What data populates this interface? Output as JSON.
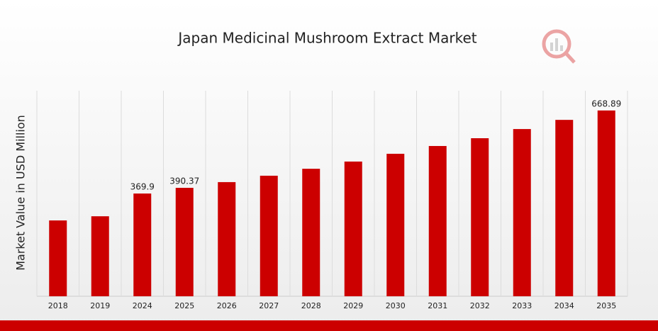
{
  "chart_data": {
    "type": "bar",
    "title": "Japan Medicinal Mushroom Extract Market",
    "y_label": "Market Value in USD Million",
    "categories": [
      "2018",
      "2019",
      "2024",
      "2025",
      "2026",
      "2027",
      "2028",
      "2029",
      "2030",
      "2031",
      "2032",
      "2033",
      "2034",
      "2035"
    ],
    "values": [
      273,
      288,
      369.9,
      390.37,
      411,
      434,
      459,
      485,
      513,
      541,
      569,
      602,
      635,
      668.89
    ],
    "value_labels": [
      null,
      null,
      "369.9",
      "390.37",
      null,
      null,
      null,
      null,
      null,
      null,
      null,
      null,
      null,
      "668.89"
    ],
    "color": "#cc0000",
    "ylim": [
      0,
      740
    ],
    "grid": true
  }
}
